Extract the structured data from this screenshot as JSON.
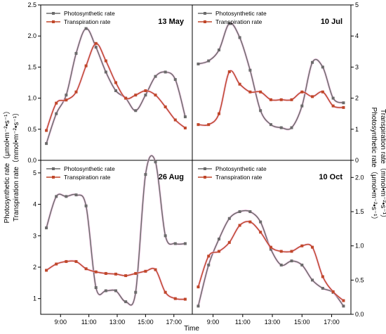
{
  "figure": {
    "left_axis_title": "Photosynthetic rate（μmol•m⁻²•s⁻¹）",
    "left_axis_title_2": "Transpiration rate（mmol•m⁻²•s⁻¹）",
    "right_axis_title": "Photosynthetic rate（μmol•m⁻²•s⁻¹）",
    "right_axis_title_2": "Transpiration rate（mmol•m⁻²•s⁻¹）",
    "x_axis_title": "Time"
  },
  "colors": {
    "photosynthetic": "#6b6b6b",
    "transpiration": "#c0472a",
    "highlight": "#f0b8e0"
  },
  "chart_data": [
    {
      "type": "line",
      "panel": "top-left",
      "date_label": "13 May",
      "x": [
        8,
        8.7,
        9.4,
        10.1,
        10.8,
        11.5,
        12.2,
        12.9,
        13.6,
        14.3,
        15.0,
        15.7,
        16.4,
        17.1,
        17.8
      ],
      "series": [
        {
          "name": "Photosynthetic rate",
          "values": [
            0.27,
            0.75,
            1.05,
            1.72,
            2.12,
            1.82,
            1.42,
            1.12,
            1.0,
            0.8,
            1.05,
            1.35,
            1.42,
            1.3,
            0.7
          ]
        },
        {
          "name": "Transpiration rate",
          "values": [
            0.48,
            0.92,
            0.97,
            1.1,
            1.52,
            1.88,
            1.6,
            1.25,
            1.0,
            1.05,
            1.12,
            1.05,
            0.86,
            0.65,
            0.52
          ]
        }
      ],
      "ylim": [
        0,
        2.5
      ],
      "yticks": [
        "0.0",
        "0.5",
        "1.0",
        "1.5",
        "2.0",
        "2.5"
      ],
      "xticks": [],
      "legend": "top-left"
    },
    {
      "type": "line",
      "panel": "top-right",
      "date_label": "10 Jul",
      "x": [
        8,
        8.7,
        9.4,
        10.1,
        10.8,
        11.5,
        12.2,
        12.9,
        13.6,
        14.3,
        15.0,
        15.7,
        16.4,
        17.1,
        17.8
      ],
      "series": [
        {
          "name": "Photosynthetic rate",
          "values": [
            3.1,
            3.2,
            3.55,
            4.4,
            3.95,
            2.9,
            1.6,
            1.15,
            1.05,
            1.05,
            1.75,
            3.15,
            3.0,
            2.0,
            1.85
          ]
        },
        {
          "name": "Transpiration rate",
          "values": [
            1.15,
            1.15,
            1.5,
            2.85,
            2.45,
            2.2,
            2.2,
            1.95,
            1.95,
            1.95,
            2.2,
            2.05,
            2.2,
            1.75,
            1.7
          ]
        }
      ],
      "ylim": [
        0,
        5
      ],
      "yticks": [
        "0",
        "1",
        "2",
        "3",
        "4",
        "5"
      ],
      "xticks": [],
      "legend": "top-left"
    },
    {
      "type": "line",
      "panel": "bottom-left",
      "date_label": "26 Aug",
      "x": [
        8,
        8.7,
        9.4,
        10.1,
        10.8,
        11.5,
        12.2,
        12.9,
        13.6,
        14.3,
        15.0,
        15.7,
        16.4,
        17.1,
        17.8
      ],
      "series": [
        {
          "name": "Photosynthetic rate",
          "values": [
            3.25,
            4.25,
            4.25,
            4.3,
            3.95,
            1.35,
            1.25,
            1.25,
            0.9,
            1.2,
            4.95,
            5.35,
            3.0,
            2.75,
            2.75
          ]
        },
        {
          "name": "Transpiration rate",
          "values": [
            1.9,
            2.1,
            2.18,
            2.18,
            1.95,
            1.85,
            1.8,
            1.78,
            1.73,
            1.8,
            1.87,
            1.92,
            1.2,
            1.0,
            0.98
          ]
        }
      ],
      "ylim": [
        0.5,
        5.4
      ],
      "yticks": [
        "1",
        "2",
        "3",
        "4",
        "5"
      ],
      "xticks": [
        "9:00",
        "11:00",
        "13:00",
        "15:00",
        "17:00"
      ],
      "legend": "top-left"
    },
    {
      "type": "line",
      "panel": "bottom-right",
      "date_label": "10 Oct",
      "x": [
        8,
        8.7,
        9.4,
        10.1,
        10.8,
        11.5,
        12.2,
        12.9,
        13.6,
        14.3,
        15.0,
        15.7,
        16.4,
        17.1,
        17.8
      ],
      "series": [
        {
          "name": "Photosynthetic rate",
          "values": [
            0.12,
            0.72,
            1.1,
            1.4,
            1.5,
            1.5,
            1.35,
            0.95,
            0.72,
            0.78,
            0.72,
            0.5,
            0.38,
            0.32,
            0.12
          ]
        },
        {
          "name": "Transpiration rate",
          "values": [
            0.4,
            0.85,
            0.92,
            1.05,
            1.3,
            1.35,
            1.2,
            0.98,
            0.92,
            0.92,
            1.0,
            0.98,
            0.55,
            0.33,
            0.2
          ]
        }
      ],
      "ylim": [
        0,
        2.25
      ],
      "yticks": [
        "0.0",
        "0.5",
        "1.0",
        "1.5",
        "2.0"
      ],
      "xticks": [
        "9:00",
        "11:00",
        "13:00",
        "15:00",
        "17:00"
      ],
      "legend": "top-left"
    }
  ]
}
